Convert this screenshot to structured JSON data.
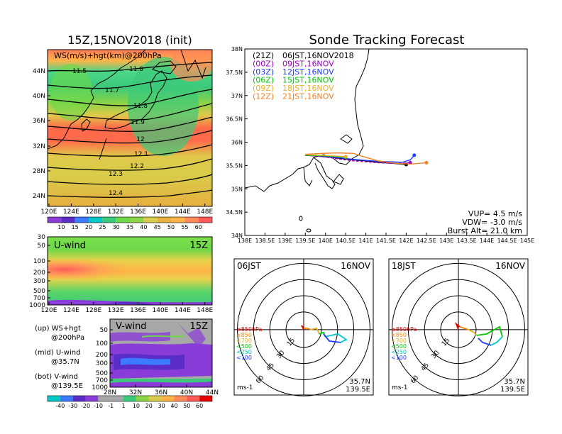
{
  "left_panel": {
    "title": "15Z,15NOV2018 (init)",
    "map_label": "WS(m/s)+hgt(km)@200hPa",
    "x_ticks": [
      "120E",
      "124E",
      "128E",
      "132E",
      "136E",
      "140E",
      "144E",
      "148E"
    ],
    "y_ticks": [
      "44N",
      "40N",
      "36N",
      "32N",
      "28N",
      "24N"
    ],
    "contour_labels": [
      "11.5",
      "11.6",
      "11.7",
      "11.8",
      "11.9",
      "12",
      "12.1",
      "12.2",
      "12.3",
      "12.4"
    ],
    "colorbar_labels": [
      "10",
      "15",
      "20",
      "25",
      "30",
      "35",
      "40",
      "45",
      "50",
      "55",
      "60"
    ]
  },
  "uwind_panel": {
    "label": "U-wind",
    "time": "15Z",
    "y_ticks": [
      "30",
      "50",
      "100",
      "200",
      "300",
      "500",
      "700",
      "1000"
    ],
    "x_ticks": [
      "120E",
      "124E",
      "128E",
      "132E",
      "136E",
      "140E",
      "144E",
      "148E"
    ]
  },
  "vwind_panel": {
    "label": "V-wind",
    "time": "15Z",
    "y_ticks": [
      "50",
      "100",
      "200",
      "300",
      "500",
      "700",
      "1000"
    ],
    "x_ticks": [
      "28N",
      "32N",
      "36N",
      "40N",
      "44N"
    ],
    "colorbar_labels": [
      "-40",
      "-30",
      "-20",
      "-10",
      "-1",
      "1",
      "10",
      "20",
      "30",
      "40",
      "50",
      "60"
    ]
  },
  "legend_text": {
    "up": [
      "(up) WS+hgt",
      "@200hPa"
    ],
    "mid": [
      "(mid) U-wind",
      "@35.7N"
    ],
    "bot": [
      "(bot) V-wind",
      "@139.5E"
    ]
  },
  "tracking": {
    "title": "Sonde Tracking Forecast",
    "x_ticks": [
      "138E",
      "138.5E",
      "139E",
      "139.5E",
      "140E",
      "140.5E",
      "141E",
      "141.5E",
      "142E",
      "142.5E",
      "143E",
      "143.5E",
      "144E",
      "144.5E",
      "145E"
    ],
    "y_ticks": [
      "38N",
      "37.5N",
      "37N",
      "36.5N",
      "36N",
      "35.5N",
      "35N",
      "34.5N",
      "34N"
    ],
    "launches": [
      {
        "code": "(21Z)",
        "label": "06JST,16NOV2018",
        "color": "#000000"
      },
      {
        "code": "(00Z)",
        "label": "09JST,16NOV",
        "color": "#a000c8"
      },
      {
        "code": "(03Z)",
        "label": "12JST,16NOV",
        "color": "#1e3cff"
      },
      {
        "code": "(06Z)",
        "label": "15JST,16NOV",
        "color": "#00c800"
      },
      {
        "code": "(09Z)",
        "label": "18JST,16NOV",
        "color": "#e6af2d"
      },
      {
        "code": "(12Z)",
        "label": "21JST,16NOV",
        "color": "#f08228"
      }
    ],
    "vup": "VUP= 4.5 m/s",
    "vdw": "VDW= -3.0 m/s",
    "burst": "Burst Alt= 21.0 km"
  },
  "polar_left": {
    "time": "06JST",
    "date": "16NOV",
    "rings": [
      "15",
      "30",
      "45",
      "60"
    ],
    "pressure_labels": [
      {
        "text": "≥850hPa",
        "color": "#e60000"
      },
      {
        "text": "<850",
        "color": "#ff8200"
      },
      {
        "text": "<700",
        "color": "#e6af2d"
      },
      {
        "text": "<500",
        "color": "#00c800"
      },
      {
        "text": "<250",
        "color": "#00c8c8"
      },
      {
        "text": "<100",
        "color": "#1e3cff"
      }
    ],
    "lat": "35.7N",
    "lon": "139.5E",
    "unit": "ms-1"
  },
  "polar_right": {
    "time": "18JST",
    "date": "16NOV",
    "rings": [
      "15",
      "30",
      "45",
      "60"
    ],
    "pressure_labels": [
      {
        "text": "≥850hPa",
        "color": "#e60000"
      },
      {
        "text": "<850",
        "color": "#ff8200"
      },
      {
        "text": "<700",
        "color": "#e6af2d"
      },
      {
        "text": "<500",
        "color": "#00c800"
      },
      {
        "text": "<250",
        "color": "#00c8c8"
      },
      {
        "text": "<100",
        "color": "#1e3cff"
      }
    ],
    "lat": "35.7N",
    "lon": "139.5E",
    "unit": "ms-1"
  },
  "chart_data": {
    "type": "line",
    "title": "Sonde Tracking Forecast",
    "xlim": [
      138,
      145
    ],
    "ylim": [
      34,
      38
    ],
    "series": [
      {
        "name": "(21Z) 06JST,16NOV2018",
        "color": "#000000",
        "x": [
          139.5,
          139.8,
          140.1,
          140.4,
          140.7,
          141.0,
          141.3,
          141.6,
          141.9,
          142.0
        ],
        "y": [
          35.72,
          35.7,
          35.68,
          35.65,
          35.62,
          35.6,
          35.57,
          35.55,
          35.53,
          35.52
        ]
      },
      {
        "name": "(00Z) 09JST,16NOV",
        "color": "#a000c8",
        "x": [
          139.5,
          139.8,
          140.1,
          140.4,
          140.7,
          141.0,
          141.3,
          141.6,
          141.9,
          142.1
        ],
        "y": [
          35.72,
          35.7,
          35.67,
          35.63,
          35.6,
          35.58,
          35.56,
          35.55,
          35.55,
          35.56
        ]
      },
      {
        "name": "(03Z) 12JST,16NOV",
        "color": "#1e3cff",
        "x": [
          139.5,
          139.8,
          140.1,
          140.4,
          140.7,
          141.0,
          141.3,
          141.6,
          141.9,
          142.1,
          142.2
        ],
        "y": [
          35.72,
          35.71,
          35.69,
          35.66,
          35.63,
          35.61,
          35.59,
          35.58,
          35.57,
          35.62,
          35.72
        ]
      },
      {
        "name": "(06Z) 15JST,16NOV",
        "color": "#00c800",
        "x": [
          139.5,
          139.9,
          140.3,
          140.5
        ],
        "y": [
          35.72,
          35.71,
          35.69,
          35.68
        ]
      },
      {
        "name": "(09Z) 18JST,16NOV",
        "color": "#e6af2d",
        "x": [
          139.5,
          139.9,
          140.3,
          140.5
        ],
        "y": [
          35.73,
          35.72,
          35.7,
          35.69
        ]
      },
      {
        "name": "(12Z) 21JST,16NOV",
        "color": "#f08228",
        "x": [
          139.5,
          139.9,
          140.3,
          140.7,
          140.9,
          141.3,
          141.7,
          142.1,
          142.5
        ],
        "y": [
          35.74,
          35.76,
          35.77,
          35.76,
          35.7,
          35.6,
          35.55,
          35.53,
          35.56
        ]
      }
    ]
  }
}
